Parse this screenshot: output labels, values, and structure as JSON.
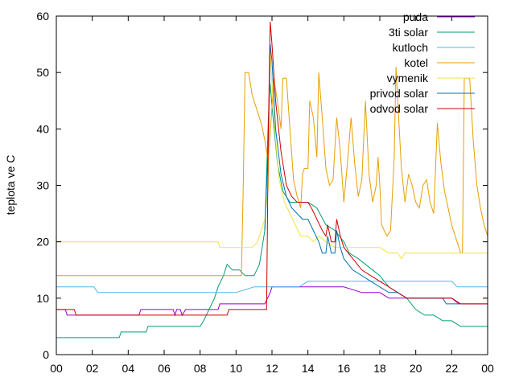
{
  "chart_data": {
    "type": "line",
    "title": "",
    "xlabel": "",
    "ylabel": "teplota ve C",
    "xlim": [
      0,
      24
    ],
    "ylim": [
      0,
      60
    ],
    "x_ticks": [
      "00",
      "02",
      "04",
      "06",
      "08",
      "10",
      "12",
      "14",
      "16",
      "18",
      "20",
      "22",
      "00"
    ],
    "y_ticks": [
      "0",
      "10",
      "20",
      "30",
      "40",
      "50",
      "60"
    ],
    "grid": false,
    "legend_position": "top-right",
    "series": [
      {
        "name": "puda",
        "color": "#9400d3",
        "points": [
          [
            0,
            8
          ],
          [
            0.5,
            8
          ],
          [
            0.6,
            7
          ],
          [
            4.6,
            7
          ],
          [
            4.7,
            8
          ],
          [
            6.5,
            8
          ],
          [
            6.6,
            7
          ],
          [
            6.7,
            8
          ],
          [
            6.9,
            8
          ],
          [
            7.0,
            7
          ],
          [
            7.2,
            8
          ],
          [
            8.0,
            8
          ],
          [
            8.2,
            8
          ],
          [
            9.0,
            8
          ],
          [
            9.1,
            9
          ],
          [
            10.5,
            9
          ],
          [
            10.7,
            9
          ],
          [
            11.6,
            9
          ],
          [
            11.9,
            11
          ],
          [
            12.0,
            12
          ],
          [
            13.0,
            12
          ],
          [
            14.0,
            12
          ],
          [
            16.0,
            12
          ],
          [
            17.0,
            11
          ],
          [
            18.0,
            11
          ],
          [
            18.5,
            10
          ],
          [
            22.0,
            10
          ],
          [
            22.4,
            9
          ],
          [
            24,
            9
          ]
        ]
      },
      {
        "name": "3ti solar",
        "color": "#009e73",
        "points": [
          [
            0,
            3
          ],
          [
            3.5,
            3
          ],
          [
            3.6,
            4
          ],
          [
            5.0,
            4
          ],
          [
            5.1,
            5
          ],
          [
            8.0,
            5
          ],
          [
            8.2,
            6
          ],
          [
            8.5,
            8
          ],
          [
            8.8,
            10
          ],
          [
            9.0,
            12
          ],
          [
            9.3,
            14
          ],
          [
            9.5,
            16
          ],
          [
            9.8,
            15
          ],
          [
            10.2,
            15
          ],
          [
            10.5,
            14
          ],
          [
            11.0,
            14
          ],
          [
            11.3,
            16
          ],
          [
            11.6,
            22
          ],
          [
            11.8,
            42
          ],
          [
            11.9,
            48
          ],
          [
            12.0,
            44
          ],
          [
            12.3,
            34
          ],
          [
            12.6,
            29
          ],
          [
            13.0,
            27
          ],
          [
            13.5,
            27
          ],
          [
            14.0,
            27
          ],
          [
            14.5,
            26
          ],
          [
            15.0,
            23
          ],
          [
            15.5,
            22
          ],
          [
            16.0,
            20
          ],
          [
            16.3,
            18
          ],
          [
            16.8,
            17
          ],
          [
            17.2,
            16
          ],
          [
            17.6,
            15
          ],
          [
            18.0,
            14
          ],
          [
            18.5,
            12
          ],
          [
            19.0,
            11
          ],
          [
            19.5,
            10
          ],
          [
            20.0,
            8
          ],
          [
            20.5,
            7
          ],
          [
            21.0,
            7
          ],
          [
            21.5,
            6
          ],
          [
            22.0,
            6
          ],
          [
            22.5,
            5
          ],
          [
            24,
            5
          ]
        ]
      },
      {
        "name": "kutloch",
        "color": "#56b4e9",
        "points": [
          [
            0,
            12
          ],
          [
            2.1,
            12
          ],
          [
            2.3,
            11
          ],
          [
            9.0,
            11
          ],
          [
            9.2,
            11
          ],
          [
            10.0,
            11
          ],
          [
            11.0,
            12
          ],
          [
            13.5,
            12
          ],
          [
            14.0,
            13
          ],
          [
            16.5,
            13
          ],
          [
            20.0,
            13
          ],
          [
            21.0,
            13
          ],
          [
            21.5,
            13
          ],
          [
            22.0,
            13
          ],
          [
            22.3,
            12
          ],
          [
            24,
            12
          ]
        ]
      },
      {
        "name": "kotel",
        "color": "#e69f00",
        "points": [
          [
            0,
            14
          ],
          [
            10.3,
            14
          ],
          [
            10.4,
            30
          ],
          [
            10.5,
            50
          ],
          [
            10.7,
            50
          ],
          [
            10.9,
            46
          ],
          [
            11.1,
            44
          ],
          [
            11.4,
            41
          ],
          [
            11.6,
            38
          ],
          [
            11.8,
            34
          ],
          [
            12.0,
            44
          ],
          [
            12.1,
            49
          ],
          [
            12.3,
            45
          ],
          [
            12.5,
            40
          ],
          [
            12.6,
            49
          ],
          [
            12.8,
            49
          ],
          [
            13.0,
            40
          ],
          [
            13.2,
            31
          ],
          [
            13.4,
            28
          ],
          [
            13.6,
            26
          ],
          [
            13.7,
            32
          ],
          [
            13.8,
            33
          ],
          [
            14.0,
            33
          ],
          [
            14.1,
            45
          ],
          [
            14.3,
            42
          ],
          [
            14.5,
            35
          ],
          [
            14.6,
            50
          ],
          [
            14.8,
            42
          ],
          [
            15.0,
            33
          ],
          [
            15.2,
            30
          ],
          [
            15.4,
            31
          ],
          [
            15.6,
            42
          ],
          [
            15.8,
            36
          ],
          [
            16.0,
            27
          ],
          [
            16.2,
            34
          ],
          [
            16.4,
            42
          ],
          [
            16.6,
            34
          ],
          [
            16.8,
            28
          ],
          [
            17.0,
            31
          ],
          [
            17.2,
            45
          ],
          [
            17.4,
            32
          ],
          [
            17.6,
            27
          ],
          [
            17.8,
            30
          ],
          [
            17.9,
            35
          ],
          [
            18.0,
            30
          ],
          [
            18.1,
            23
          ],
          [
            18.4,
            21
          ],
          [
            18.6,
            22
          ],
          [
            18.8,
            35
          ],
          [
            18.9,
            51
          ],
          [
            19.0,
            45
          ],
          [
            19.2,
            33
          ],
          [
            19.4,
            27
          ],
          [
            19.6,
            32
          ],
          [
            19.8,
            30
          ],
          [
            20.0,
            27
          ],
          [
            20.2,
            26
          ],
          [
            20.4,
            30
          ],
          [
            20.6,
            31
          ],
          [
            20.8,
            27
          ],
          [
            21.0,
            25
          ],
          [
            21.2,
            41
          ],
          [
            21.4,
            34
          ],
          [
            21.6,
            29
          ],
          [
            21.8,
            26
          ],
          [
            22.0,
            23
          ],
          [
            22.3,
            20
          ],
          [
            22.5,
            18
          ],
          [
            22.6,
            18
          ],
          [
            22.7,
            49
          ],
          [
            23.0,
            49
          ],
          [
            23.2,
            38
          ],
          [
            23.4,
            30
          ],
          [
            23.6,
            26
          ],
          [
            23.8,
            23
          ],
          [
            24,
            21
          ]
        ]
      },
      {
        "name": "vymenik",
        "color": "#f0e442",
        "points": [
          [
            0,
            20
          ],
          [
            9.0,
            20
          ],
          [
            9.1,
            19
          ],
          [
            10.5,
            19
          ],
          [
            10.9,
            19
          ],
          [
            11.2,
            20
          ],
          [
            11.6,
            24
          ],
          [
            11.8,
            30
          ],
          [
            11.9,
            54
          ],
          [
            12.0,
            48
          ],
          [
            12.2,
            38
          ],
          [
            12.4,
            31
          ],
          [
            12.7,
            27
          ],
          [
            13.0,
            25
          ],
          [
            13.3,
            23
          ],
          [
            13.6,
            21
          ],
          [
            14.0,
            21
          ],
          [
            14.3,
            20
          ],
          [
            14.6,
            21
          ],
          [
            15.0,
            20
          ],
          [
            15.5,
            19
          ],
          [
            16.0,
            19
          ],
          [
            17.0,
            19
          ],
          [
            18.0,
            19
          ],
          [
            18.5,
            18
          ],
          [
            19.0,
            18
          ],
          [
            19.2,
            17
          ],
          [
            19.4,
            18
          ],
          [
            24,
            18
          ]
        ]
      },
      {
        "name": "privod solar",
        "color": "#0072b2",
        "points": [
          [
            11.6,
            22
          ],
          [
            11.8,
            38
          ],
          [
            11.9,
            55
          ],
          [
            12.0,
            52
          ],
          [
            12.2,
            40
          ],
          [
            12.5,
            32
          ],
          [
            12.8,
            28
          ],
          [
            13.1,
            26
          ],
          [
            13.4,
            25
          ],
          [
            13.7,
            24
          ],
          [
            14.0,
            24
          ],
          [
            14.3,
            22
          ],
          [
            14.6,
            20
          ],
          [
            14.8,
            18
          ],
          [
            15.0,
            18
          ],
          [
            15.1,
            21
          ],
          [
            15.3,
            18
          ],
          [
            15.5,
            18
          ],
          [
            15.6,
            22
          ],
          [
            15.8,
            19
          ],
          [
            16.0,
            17
          ],
          [
            16.5,
            15
          ],
          [
            17.0,
            14
          ],
          [
            17.5,
            13
          ],
          [
            18.0,
            12
          ],
          [
            18.5,
            11
          ],
          [
            19.0,
            11
          ],
          [
            19.5,
            10
          ],
          [
            20.0,
            10
          ],
          [
            20.5,
            10
          ],
          [
            21.0,
            10
          ],
          [
            21.5,
            10
          ],
          [
            21.7,
            9
          ],
          [
            22.0,
            9
          ],
          [
            22.5,
            9
          ]
        ]
      },
      {
        "name": "odvod solar",
        "color": "#d00000",
        "points": [
          [
            0,
            8
          ],
          [
            1.0,
            8
          ],
          [
            1.1,
            7
          ],
          [
            9.5,
            7
          ],
          [
            9.6,
            8
          ],
          [
            11.7,
            8
          ],
          [
            11.8,
            40
          ],
          [
            11.9,
            59
          ],
          [
            12.0,
            55
          ],
          [
            12.2,
            45
          ],
          [
            12.5,
            36
          ],
          [
            12.8,
            30
          ],
          [
            13.1,
            28
          ],
          [
            13.4,
            27
          ],
          [
            13.8,
            27
          ],
          [
            14.0,
            27
          ],
          [
            14.2,
            26
          ],
          [
            14.5,
            24
          ],
          [
            14.8,
            22
          ],
          [
            15.0,
            21
          ],
          [
            15.1,
            23
          ],
          [
            15.3,
            20
          ],
          [
            15.5,
            20
          ],
          [
            15.6,
            24
          ],
          [
            15.8,
            21
          ],
          [
            16.0,
            19
          ],
          [
            16.5,
            17
          ],
          [
            17.0,
            15
          ],
          [
            17.5,
            14
          ],
          [
            18.0,
            13
          ],
          [
            18.5,
            12
          ],
          [
            19.0,
            11
          ],
          [
            19.5,
            10
          ],
          [
            20.0,
            10
          ],
          [
            21.0,
            10
          ],
          [
            22.0,
            10
          ],
          [
            22.5,
            9
          ],
          [
            24,
            9
          ]
        ]
      }
    ]
  }
}
